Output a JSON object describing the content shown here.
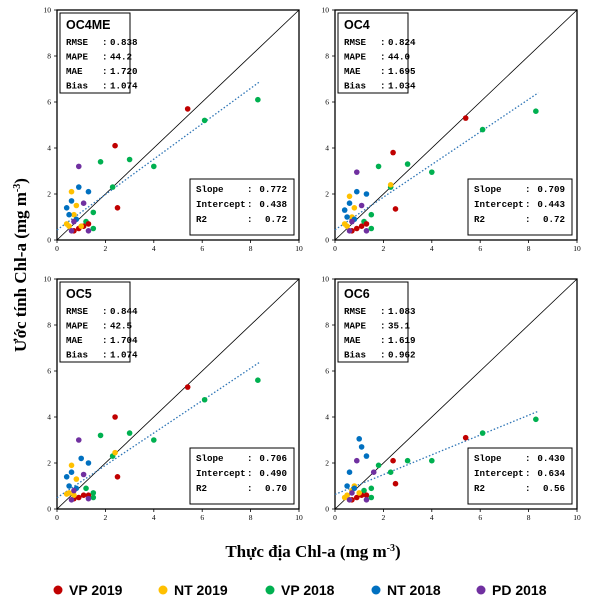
{
  "chart_data": {
    "type": "scatter",
    "ylabel": "Ước tính Chl-a (mg m",
    "ylabel_sup": "-3",
    "ylabel_end": ")",
    "xlabel": "Thực địa Chl-a (mg m",
    "xlabel_sup": "-3",
    "xlabel_end": ")",
    "xlim": [
      0,
      10
    ],
    "ylim": [
      0,
      10
    ],
    "ticks": [
      "0",
      "2",
      "4",
      "6",
      "8",
      "10"
    ],
    "legend_placement": "bottom",
    "legend": [
      {
        "name": "VP 2019",
        "color": "#c00000"
      },
      {
        "name": "NT 2019",
        "color": "#ffc000"
      },
      {
        "name": "VP 2018",
        "color": "#00b050"
      },
      {
        "name": "NT 2018",
        "color": "#0070c0"
      },
      {
        "name": "PD 2018",
        "color": "#7030a0"
      }
    ],
    "panels": [
      {
        "title": "OC4ME",
        "stats": [
          {
            "k": "RMSE",
            "v": "0.838"
          },
          {
            "k": "MAPE",
            "v": "44.2"
          },
          {
            "k": "MAE",
            "v": "1.720"
          },
          {
            "k": "Bias",
            "v": "1.074"
          }
        ],
        "fit": [
          {
            "k": "Slope",
            "v": "0.772"
          },
          {
            "k": "Intercept",
            "v": "0.438"
          },
          {
            "k": "R2",
            "v": "0.72"
          }
        ],
        "trend_x": [
          0,
          8.4
        ],
        "trend_y": [
          0.438,
          6.9
        ],
        "points": [
          {
            "s": "VP 2018",
            "x": 8.3,
            "y": 6.1
          },
          {
            "s": "VP 2018",
            "x": 6.1,
            "y": 5.2
          },
          {
            "s": "VP 2018",
            "x": 4.0,
            "y": 3.2
          },
          {
            "s": "VP 2018",
            "x": 3.0,
            "y": 3.5
          },
          {
            "s": "VP 2018",
            "x": 1.8,
            "y": 3.4
          },
          {
            "s": "VP 2018",
            "x": 2.3,
            "y": 2.3
          },
          {
            "s": "VP 2018",
            "x": 1.5,
            "y": 1.2
          },
          {
            "s": "VP 2018",
            "x": 1.2,
            "y": 0.8
          },
          {
            "s": "VP 2018",
            "x": 1.5,
            "y": 0.5
          },
          {
            "s": "VP 2019",
            "x": 5.4,
            "y": 5.7
          },
          {
            "s": "VP 2019",
            "x": 2.4,
            "y": 4.1
          },
          {
            "s": "VP 2019",
            "x": 2.5,
            "y": 1.4
          },
          {
            "s": "VP 2019",
            "x": 1.3,
            "y": 0.7
          },
          {
            "s": "VP 2019",
            "x": 0.9,
            "y": 0.5
          },
          {
            "s": "VP 2019",
            "x": 1.1,
            "y": 0.6
          },
          {
            "s": "VP 2019",
            "x": 0.7,
            "y": 0.4
          },
          {
            "s": "NT 2019",
            "x": 0.5,
            "y": 0.6
          },
          {
            "s": "NT 2019",
            "x": 0.7,
            "y": 1.1
          },
          {
            "s": "NT 2019",
            "x": 0.8,
            "y": 1.5
          },
          {
            "s": "NT 2019",
            "x": 0.6,
            "y": 2.1
          },
          {
            "s": "NT 2019",
            "x": 0.4,
            "y": 0.7
          },
          {
            "s": "NT 2019",
            "x": 1.0,
            "y": 0.6
          },
          {
            "s": "NT 2018",
            "x": 1.3,
            "y": 2.1
          },
          {
            "s": "NT 2018",
            "x": 0.9,
            "y": 2.3
          },
          {
            "s": "NT 2018",
            "x": 0.6,
            "y": 1.7
          },
          {
            "s": "NT 2018",
            "x": 0.4,
            "y": 1.4
          },
          {
            "s": "NT 2018",
            "x": 0.5,
            "y": 1.1
          },
          {
            "s": "NT 2018",
            "x": 0.8,
            "y": 0.9
          },
          {
            "s": "PD 2018",
            "x": 0.9,
            "y": 3.2
          },
          {
            "s": "PD 2018",
            "x": 1.1,
            "y": 1.6
          },
          {
            "s": "PD 2018",
            "x": 0.7,
            "y": 0.8
          },
          {
            "s": "PD 2018",
            "x": 1.3,
            "y": 0.4
          },
          {
            "s": "PD 2018",
            "x": 0.6,
            "y": 0.4
          }
        ]
      },
      {
        "title": "OC4",
        "stats": [
          {
            "k": "RMSE",
            "v": "0.824"
          },
          {
            "k": "MAPE",
            "v": "44.0"
          },
          {
            "k": "MAE",
            "v": "1.695"
          },
          {
            "k": "Bias",
            "v": "1.034"
          }
        ],
        "fit": [
          {
            "k": "Slope",
            "v": "0.709"
          },
          {
            "k": "Intercept",
            "v": "0.443"
          },
          {
            "k": "R2",
            "v": "0.72"
          }
        ],
        "trend_x": [
          0,
          8.4
        ],
        "trend_y": [
          0.443,
          6.4
        ],
        "points": [
          {
            "s": "VP 2018",
            "x": 8.3,
            "y": 5.6
          },
          {
            "s": "VP 2018",
            "x": 6.1,
            "y": 4.8
          },
          {
            "s": "VP 2018",
            "x": 4.0,
            "y": 2.95
          },
          {
            "s": "VP 2018",
            "x": 3.0,
            "y": 3.3
          },
          {
            "s": "VP 2018",
            "x": 1.8,
            "y": 3.2
          },
          {
            "s": "VP 2018",
            "x": 2.3,
            "y": 2.3
          },
          {
            "s": "VP 2018",
            "x": 1.5,
            "y": 1.1
          },
          {
            "s": "VP 2018",
            "x": 1.2,
            "y": 0.8
          },
          {
            "s": "VP 2018",
            "x": 1.5,
            "y": 0.5
          },
          {
            "s": "VP 2019",
            "x": 5.4,
            "y": 5.3
          },
          {
            "s": "VP 2019",
            "x": 2.4,
            "y": 3.8
          },
          {
            "s": "VP 2019",
            "x": 2.5,
            "y": 1.35
          },
          {
            "s": "VP 2019",
            "x": 1.3,
            "y": 0.7
          },
          {
            "s": "VP 2019",
            "x": 0.9,
            "y": 0.5
          },
          {
            "s": "VP 2019",
            "x": 1.1,
            "y": 0.6
          },
          {
            "s": "VP 2019",
            "x": 0.7,
            "y": 0.4
          },
          {
            "s": "NT 2019",
            "x": 0.5,
            "y": 0.6
          },
          {
            "s": "NT 2019",
            "x": 0.7,
            "y": 1.0
          },
          {
            "s": "NT 2019",
            "x": 0.8,
            "y": 1.4
          },
          {
            "s": "NT 2019",
            "x": 0.6,
            "y": 1.9
          },
          {
            "s": "NT 2019",
            "x": 0.4,
            "y": 0.7
          },
          {
            "s": "NT 2019",
            "x": 2.3,
            "y": 2.4
          },
          {
            "s": "NT 2018",
            "x": 1.3,
            "y": 2.0
          },
          {
            "s": "NT 2018",
            "x": 0.9,
            "y": 2.1
          },
          {
            "s": "NT 2018",
            "x": 0.6,
            "y": 1.6
          },
          {
            "s": "NT 2018",
            "x": 0.4,
            "y": 1.3
          },
          {
            "s": "NT 2018",
            "x": 0.5,
            "y": 1.0
          },
          {
            "s": "NT 2018",
            "x": 0.8,
            "y": 0.9
          },
          {
            "s": "PD 2018",
            "x": 0.9,
            "y": 2.95
          },
          {
            "s": "PD 2018",
            "x": 1.1,
            "y": 1.5
          },
          {
            "s": "PD 2018",
            "x": 0.7,
            "y": 0.8
          },
          {
            "s": "PD 2018",
            "x": 1.3,
            "y": 0.4
          },
          {
            "s": "PD 2018",
            "x": 0.6,
            "y": 0.4
          }
        ]
      },
      {
        "title": "OC5",
        "stats": [
          {
            "k": "RMSE",
            "v": "0.844"
          },
          {
            "k": "MAPE",
            "v": "42.5"
          },
          {
            "k": "MAE",
            "v": "1.704"
          },
          {
            "k": "Bias",
            "v": "1.074"
          }
        ],
        "fit": [
          {
            "k": "Slope",
            "v": "0.706"
          },
          {
            "k": "Intercept",
            "v": "0.490"
          },
          {
            "k": "R2",
            "v": "0.70"
          }
        ],
        "trend_x": [
          0,
          8.4
        ],
        "trend_y": [
          0.49,
          6.4
        ],
        "points": [
          {
            "s": "VP 2018",
            "x": 8.3,
            "y": 5.6
          },
          {
            "s": "VP 2018",
            "x": 6.1,
            "y": 4.75
          },
          {
            "s": "VP 2018",
            "x": 4.0,
            "y": 3.0
          },
          {
            "s": "VP 2018",
            "x": 3.0,
            "y": 3.3
          },
          {
            "s": "VP 2018",
            "x": 1.8,
            "y": 3.2
          },
          {
            "s": "VP 2018",
            "x": 2.3,
            "y": 2.3
          },
          {
            "s": "VP 2018",
            "x": 1.5,
            "y": 0.7
          },
          {
            "s": "VP 2018",
            "x": 1.2,
            "y": 0.9
          },
          {
            "s": "VP 2018",
            "x": 1.5,
            "y": 0.5
          },
          {
            "s": "VP 2019",
            "x": 5.4,
            "y": 5.3
          },
          {
            "s": "VP 2019",
            "x": 2.4,
            "y": 4.0
          },
          {
            "s": "VP 2019",
            "x": 2.5,
            "y": 1.4
          },
          {
            "s": "VP 2019",
            "x": 1.3,
            "y": 0.6
          },
          {
            "s": "VP 2019",
            "x": 0.9,
            "y": 0.5
          },
          {
            "s": "VP 2019",
            "x": 1.1,
            "y": 0.6
          },
          {
            "s": "VP 2019",
            "x": 0.7,
            "y": 0.45
          },
          {
            "s": "NT 2019",
            "x": 0.5,
            "y": 0.7
          },
          {
            "s": "NT 2019",
            "x": 0.7,
            "y": 0.6
          },
          {
            "s": "NT 2019",
            "x": 0.8,
            "y": 1.3
          },
          {
            "s": "NT 2019",
            "x": 0.6,
            "y": 1.9
          },
          {
            "s": "NT 2019",
            "x": 0.4,
            "y": 0.65
          },
          {
            "s": "NT 2019",
            "x": 2.4,
            "y": 2.45
          },
          {
            "s": "NT 2018",
            "x": 1.3,
            "y": 2.0
          },
          {
            "s": "NT 2018",
            "x": 1.0,
            "y": 2.2
          },
          {
            "s": "NT 2018",
            "x": 0.6,
            "y": 1.6
          },
          {
            "s": "NT 2018",
            "x": 0.4,
            "y": 1.4
          },
          {
            "s": "NT 2018",
            "x": 0.5,
            "y": 1.0
          },
          {
            "s": "NT 2018",
            "x": 0.8,
            "y": 0.9
          },
          {
            "s": "PD 2018",
            "x": 0.9,
            "y": 3.0
          },
          {
            "s": "PD 2018",
            "x": 1.1,
            "y": 1.5
          },
          {
            "s": "PD 2018",
            "x": 0.7,
            "y": 0.8
          },
          {
            "s": "PD 2018",
            "x": 1.3,
            "y": 0.45
          },
          {
            "s": "PD 2018",
            "x": 0.6,
            "y": 0.4
          }
        ]
      },
      {
        "title": "OC6",
        "stats": [
          {
            "k": "RMSE",
            "v": "1.083"
          },
          {
            "k": "MAPE",
            "v": "35.1"
          },
          {
            "k": "MAE",
            "v": "1.619"
          },
          {
            "k": "Bias",
            "v": "0.962"
          }
        ],
        "fit": [
          {
            "k": "Slope",
            "v": "0.430"
          },
          {
            "k": "Intercept",
            "v": "0.634"
          },
          {
            "k": "R2",
            "v": "0.56"
          }
        ],
        "trend_x": [
          0,
          8.4
        ],
        "trend_y": [
          0.634,
          4.25
        ],
        "points": [
          {
            "s": "VP 2018",
            "x": 8.3,
            "y": 3.9
          },
          {
            "s": "VP 2018",
            "x": 6.1,
            "y": 3.3
          },
          {
            "s": "VP 2018",
            "x": 4.0,
            "y": 2.1
          },
          {
            "s": "VP 2018",
            "x": 3.0,
            "y": 2.1
          },
          {
            "s": "VP 2018",
            "x": 1.8,
            "y": 1.9
          },
          {
            "s": "VP 2018",
            "x": 2.3,
            "y": 1.6
          },
          {
            "s": "VP 2018",
            "x": 1.5,
            "y": 0.9
          },
          {
            "s": "VP 2018",
            "x": 1.2,
            "y": 0.8
          },
          {
            "s": "VP 2018",
            "x": 1.5,
            "y": 0.5
          },
          {
            "s": "VP 2019",
            "x": 5.4,
            "y": 3.1
          },
          {
            "s": "VP 2019",
            "x": 2.4,
            "y": 2.1
          },
          {
            "s": "VP 2019",
            "x": 2.5,
            "y": 1.1
          },
          {
            "s": "VP 2019",
            "x": 1.3,
            "y": 0.6
          },
          {
            "s": "VP 2019",
            "x": 0.9,
            "y": 0.5
          },
          {
            "s": "VP 2019",
            "x": 1.1,
            "y": 0.6
          },
          {
            "s": "VP 2019",
            "x": 0.7,
            "y": 0.4
          },
          {
            "s": "NT 2019",
            "x": 0.5,
            "y": 0.6
          },
          {
            "s": "NT 2019",
            "x": 0.7,
            "y": 0.8
          },
          {
            "s": "NT 2019",
            "x": 0.8,
            "y": 1.0
          },
          {
            "s": "NT 2019",
            "x": 0.6,
            "y": 0.4
          },
          {
            "s": "NT 2019",
            "x": 0.4,
            "y": 0.5
          },
          {
            "s": "NT 2019",
            "x": 1.0,
            "y": 0.7
          },
          {
            "s": "NT 2018",
            "x": 1.0,
            "y": 3.05
          },
          {
            "s": "NT 2018",
            "x": 1.1,
            "y": 2.7
          },
          {
            "s": "NT 2018",
            "x": 0.6,
            "y": 1.6
          },
          {
            "s": "NT 2018",
            "x": 1.3,
            "y": 2.3
          },
          {
            "s": "NT 2018",
            "x": 0.5,
            "y": 1.0
          },
          {
            "s": "NT 2018",
            "x": 0.8,
            "y": 0.9
          },
          {
            "s": "PD 2018",
            "x": 0.9,
            "y": 2.1
          },
          {
            "s": "PD 2018",
            "x": 1.6,
            "y": 1.6
          },
          {
            "s": "PD 2018",
            "x": 0.7,
            "y": 0.7
          },
          {
            "s": "PD 2018",
            "x": 1.3,
            "y": 0.4
          },
          {
            "s": "PD 2018",
            "x": 0.6,
            "y": 0.4
          }
        ]
      }
    ]
  }
}
